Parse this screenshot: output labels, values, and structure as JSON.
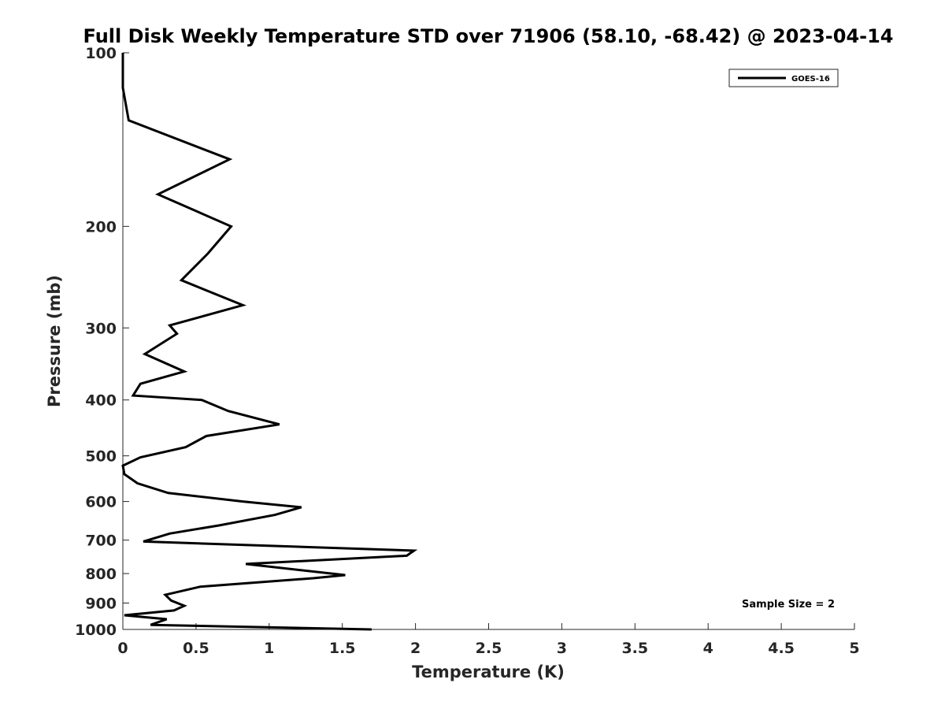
{
  "chart_data": {
    "type": "line",
    "title": "Full Disk Weekly Temperature STD over 71906 (58.10, -68.42) @ 2023-04-14",
    "xlabel": "Temperature (K)",
    "ylabel": "Pressure (mb)",
    "xlim": [
      0,
      5
    ],
    "ylim": [
      100,
      1000
    ],
    "y_scale": "log",
    "y_direction": "reversed",
    "grid": false,
    "legend_position": "top-right",
    "x_ticks": [
      "0",
      "0.5",
      "1",
      "1.5",
      "2",
      "2.5",
      "3",
      "3.5",
      "4",
      "4.5",
      "5"
    ],
    "y_ticks": [
      "100",
      "200",
      "300",
      "400",
      "500",
      "600",
      "700",
      "800",
      "900",
      "1000"
    ],
    "annotation": "Sample Size = 2",
    "series": [
      {
        "name": "GOES-16",
        "color": "#000000",
        "x": [
          0.0,
          0.0,
          0.04,
          0.73,
          0.24,
          0.74,
          0.58,
          0.4,
          0.82,
          0.32,
          0.37,
          0.15,
          0.42,
          0.12,
          0.07,
          0.54,
          0.72,
          1.07,
          0.57,
          0.43,
          0.12,
          0.0,
          0.01,
          0.1,
          0.31,
          0.82,
          1.22,
          1.04,
          0.66,
          0.32,
          0.14,
          1.99,
          1.94,
          0.84,
          1.52,
          1.3,
          0.53,
          0.29,
          0.33,
          0.42,
          0.35,
          0.01,
          0.3,
          0.19,
          1.7
        ],
        "y": [
          100,
          115,
          131,
          153,
          176,
          200,
          223,
          248,
          274,
          297,
          307,
          333,
          357,
          375,
          393,
          400,
          418,
          441,
          462,
          483,
          503,
          520,
          538,
          558,
          580,
          600,
          614,
          633,
          660,
          682,
          704,
          730,
          745,
          770,
          805,
          815,
          843,
          871,
          891,
          910,
          927,
          945,
          960,
          982,
          1000
        ]
      }
    ]
  }
}
